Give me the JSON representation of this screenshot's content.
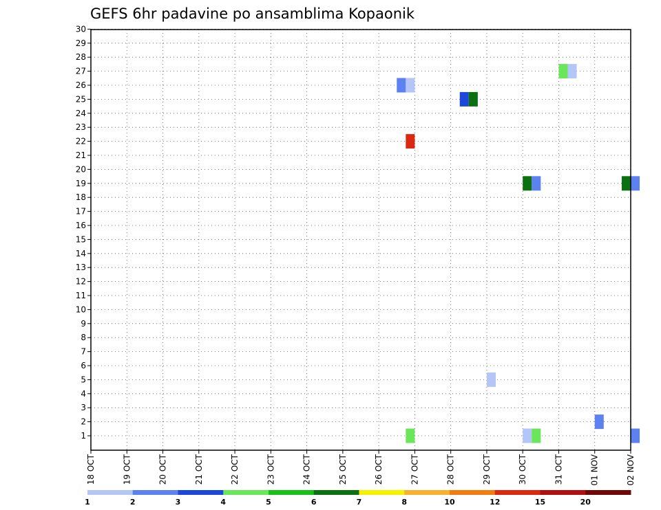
{
  "chart_data": {
    "type": "heatmap",
    "title": "GEFS 6hr padavine po ansamblima Kopaonik",
    "xlabel": "",
    "ylabel": "",
    "x_ticks": [
      "18 OCT",
      "19 OCT",
      "20 OCT",
      "21 OCT",
      "22 OCT",
      "23 OCT",
      "24 OCT",
      "25 OCT",
      "26 OCT",
      "27 OCT",
      "28 OCT",
      "29 OCT",
      "30 OCT",
      "31 OCT",
      "01 NOV",
      "02 NOV"
    ],
    "x_range": [
      "18 OCT 00Z",
      "02 NOV 00Z"
    ],
    "x_step_hours": 6,
    "y_range": [
      1,
      30
    ],
    "y_ticks": [
      1,
      2,
      3,
      4,
      5,
      6,
      7,
      8,
      9,
      10,
      11,
      12,
      13,
      14,
      15,
      16,
      17,
      18,
      19,
      20,
      21,
      22,
      23,
      24,
      25,
      26,
      27,
      28,
      29,
      30
    ],
    "grid": true,
    "legend_position": "bottom",
    "colorbar": {
      "labels": [
        "1",
        "2",
        "3",
        "4",
        "5",
        "6",
        "7",
        "8",
        "10",
        "12",
        "15",
        "20"
      ],
      "colors": [
        "#b3c6f7",
        "#5b82f0",
        "#1c47db",
        "#6ae65a",
        "#18c018",
        "#0a7010",
        "#f7f000",
        "#f7b030",
        "#f07d10",
        "#dc2810",
        "#b01010",
        "#700808"
      ]
    },
    "cells": [
      {
        "member": 26,
        "time": "26 OCT 12Z",
        "color": "#5b82f0"
      },
      {
        "member": 26,
        "time": "26 OCT 18Z",
        "color": "#b3c6f7"
      },
      {
        "member": 22,
        "time": "26 OCT 18Z",
        "color": "#dc2810"
      },
      {
        "member": 1,
        "time": "26 OCT 18Z",
        "color": "#6ae65a"
      },
      {
        "member": 25,
        "time": "28 OCT 06Z",
        "color": "#1c47db"
      },
      {
        "member": 25,
        "time": "28 OCT 12Z",
        "color": "#0a7010"
      },
      {
        "member": 5,
        "time": "29 OCT 00Z",
        "color": "#b3c6f7"
      },
      {
        "member": 19,
        "time": "30 OCT 00Z",
        "color": "#0a7010"
      },
      {
        "member": 19,
        "time": "30 OCT 06Z",
        "color": "#5b82f0"
      },
      {
        "member": 1,
        "time": "30 OCT 00Z",
        "color": "#b3c6f7"
      },
      {
        "member": 1,
        "time": "30 OCT 06Z",
        "color": "#6ae65a"
      },
      {
        "member": 27,
        "time": "31 OCT 00Z",
        "color": "#6ae65a"
      },
      {
        "member": 27,
        "time": "31 OCT 06Z",
        "color": "#b3c6f7"
      },
      {
        "member": 2,
        "time": "01 NOV 00Z",
        "color": "#5b82f0"
      },
      {
        "member": 19,
        "time": "01 NOV 18Z",
        "color": "#0a7010"
      },
      {
        "member": 19,
        "time": "02 NOV 00Z",
        "color": "#5b82f0"
      },
      {
        "member": 1,
        "time": "02 NOV 00Z",
        "color": "#5b82f0"
      }
    ]
  }
}
